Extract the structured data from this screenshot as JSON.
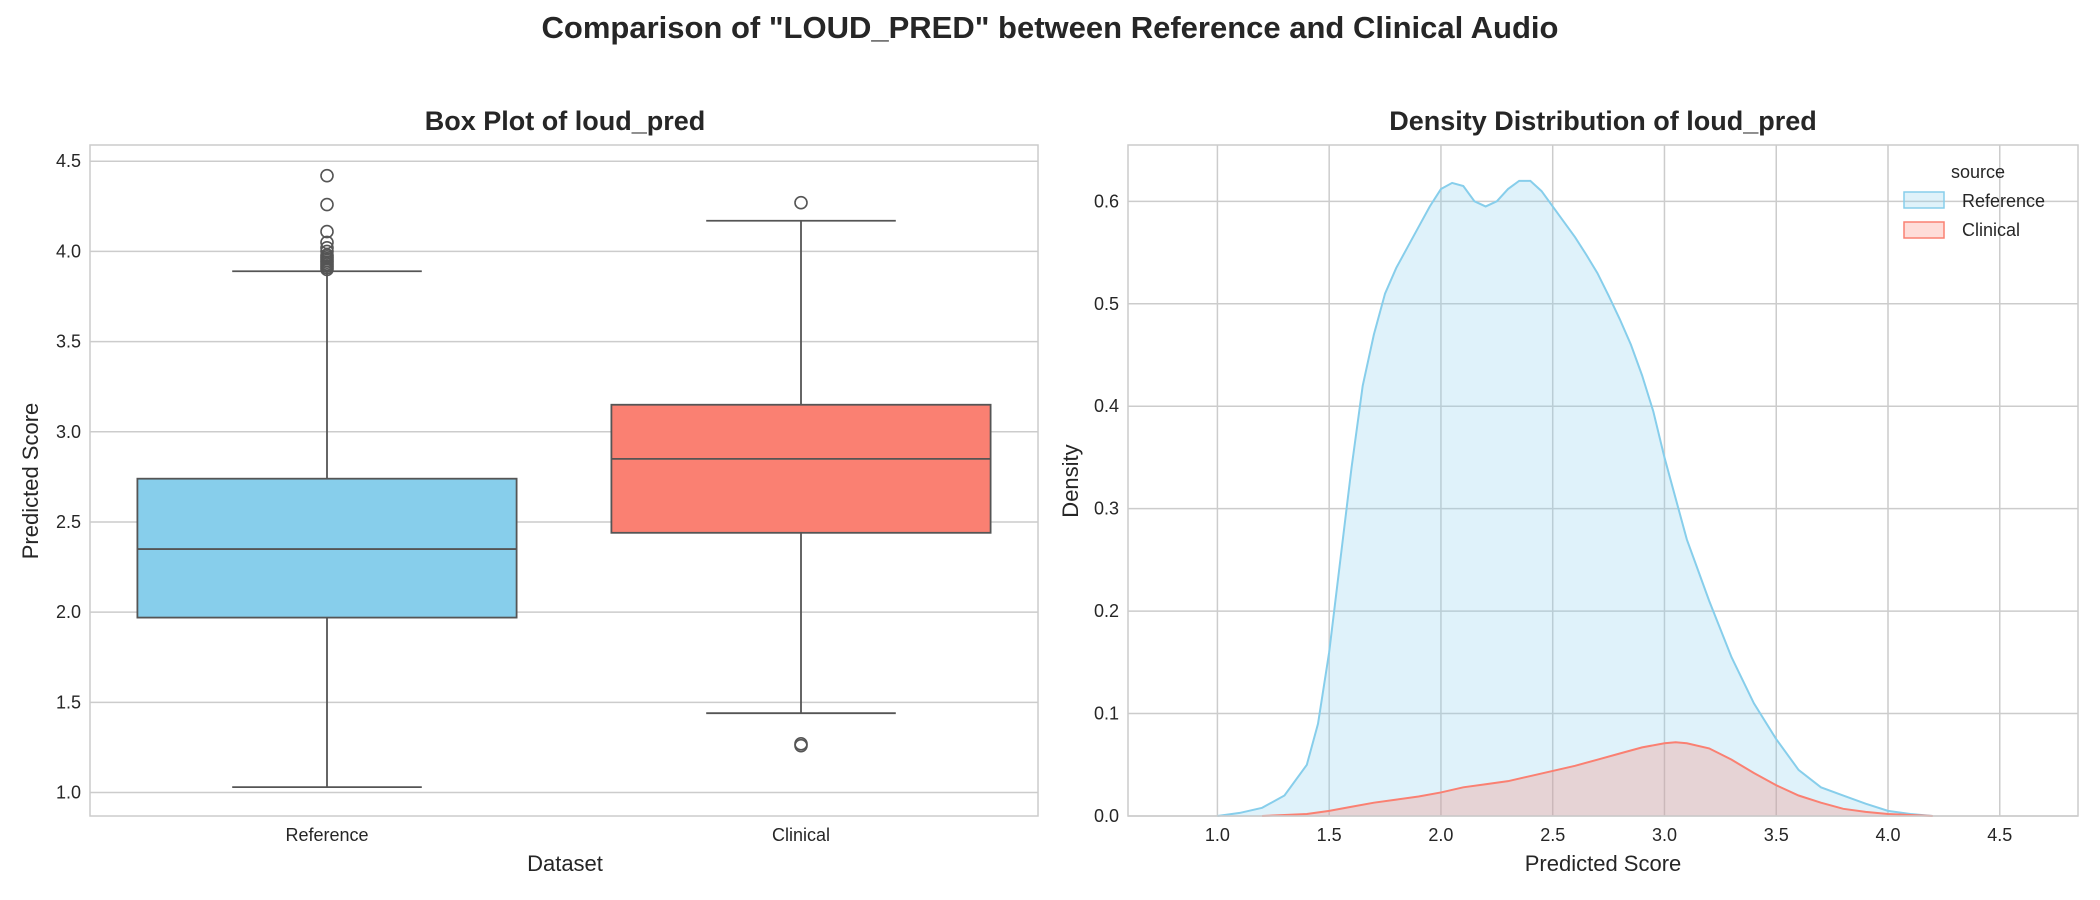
{
  "page": {
    "suptitle": "Comparison of \"LOUD_PRED\" between Reference and Clinical Audio"
  },
  "colors": {
    "reference": "#87CEEB",
    "clinical": "#FA8072",
    "grid": "#cccccc",
    "spine": "#cccccc",
    "text": "#262626",
    "box_line": "#555555"
  },
  "chart_data": [
    {
      "type": "box",
      "title": "Box Plot of loud_pred",
      "xlabel": "Dataset",
      "ylabel": "Predicted Score",
      "ylim": [
        0.87,
        4.59
      ],
      "yticks": [
        "1.0",
        "1.5",
        "2.0",
        "2.5",
        "3.0",
        "3.5",
        "4.0",
        "4.5"
      ],
      "categories": [
        "Reference",
        "Clinical"
      ],
      "grid": true,
      "boxes": [
        {
          "name": "Reference",
          "color": "#87CEEB",
          "whisker_low": 1.03,
          "q1": 1.97,
          "median": 2.35,
          "q3": 2.74,
          "whisker_high": 3.89,
          "outliers": [
            3.9,
            3.91,
            3.92,
            3.93,
            3.94,
            3.95,
            3.96,
            3.97,
            3.98,
            4.0,
            4.02,
            4.05,
            4.11,
            4.26,
            4.42
          ]
        },
        {
          "name": "Clinical",
          "color": "#FA8072",
          "whisker_low": 1.44,
          "q1": 2.44,
          "median": 2.85,
          "q3": 3.15,
          "whisker_high": 4.17,
          "outliers": [
            1.26,
            1.27,
            4.27
          ]
        }
      ]
    },
    {
      "type": "area",
      "title": "Density Distribution of loud_pred",
      "xlabel": "Predicted Score",
      "ylabel": "Density",
      "xlim": [
        0.6,
        4.85
      ],
      "ylim": [
        0,
        0.655
      ],
      "xticks": [
        "1.0",
        "1.5",
        "2.0",
        "2.5",
        "3.0",
        "3.5",
        "4.0",
        "4.5"
      ],
      "yticks": [
        "0.0",
        "0.1",
        "0.2",
        "0.3",
        "0.4",
        "0.5",
        "0.6"
      ],
      "grid": true,
      "legend": {
        "title": "source",
        "placement": "top-right"
      },
      "series": [
        {
          "name": "Reference",
          "color": "#87CEEB",
          "x": [
            1.0,
            1.1,
            1.2,
            1.3,
            1.4,
            1.45,
            1.5,
            1.55,
            1.6,
            1.65,
            1.7,
            1.75,
            1.8,
            1.85,
            1.9,
            1.95,
            2.0,
            2.05,
            2.1,
            2.15,
            2.2,
            2.25,
            2.3,
            2.35,
            2.4,
            2.45,
            2.5,
            2.55,
            2.6,
            2.65,
            2.7,
            2.75,
            2.8,
            2.85,
            2.9,
            2.95,
            3.0,
            3.05,
            3.1,
            3.15,
            3.2,
            3.3,
            3.4,
            3.5,
            3.6,
            3.7,
            3.8,
            3.9,
            4.0,
            4.1,
            4.2
          ],
          "y": [
            0.0,
            0.003,
            0.008,
            0.02,
            0.05,
            0.09,
            0.16,
            0.25,
            0.34,
            0.42,
            0.47,
            0.51,
            0.535,
            0.555,
            0.575,
            0.595,
            0.612,
            0.618,
            0.615,
            0.6,
            0.595,
            0.6,
            0.612,
            0.62,
            0.62,
            0.61,
            0.595,
            0.58,
            0.565,
            0.548,
            0.53,
            0.508,
            0.485,
            0.46,
            0.43,
            0.395,
            0.35,
            0.31,
            0.27,
            0.24,
            0.21,
            0.155,
            0.11,
            0.075,
            0.045,
            0.028,
            0.02,
            0.012,
            0.005,
            0.002,
            0.0
          ]
        },
        {
          "name": "Clinical",
          "color": "#FA8072",
          "x": [
            1.2,
            1.3,
            1.4,
            1.5,
            1.6,
            1.7,
            1.8,
            1.9,
            2.0,
            2.1,
            2.2,
            2.3,
            2.4,
            2.5,
            2.6,
            2.7,
            2.8,
            2.9,
            3.0,
            3.05,
            3.1,
            3.2,
            3.3,
            3.4,
            3.5,
            3.6,
            3.7,
            3.8,
            3.9,
            4.0,
            4.1,
            4.2
          ],
          "y": [
            0.0,
            0.001,
            0.002,
            0.005,
            0.009,
            0.013,
            0.016,
            0.019,
            0.023,
            0.028,
            0.031,
            0.034,
            0.039,
            0.044,
            0.049,
            0.055,
            0.061,
            0.067,
            0.071,
            0.072,
            0.071,
            0.066,
            0.055,
            0.042,
            0.03,
            0.02,
            0.013,
            0.007,
            0.004,
            0.002,
            0.001,
            0.0
          ]
        }
      ]
    }
  ]
}
